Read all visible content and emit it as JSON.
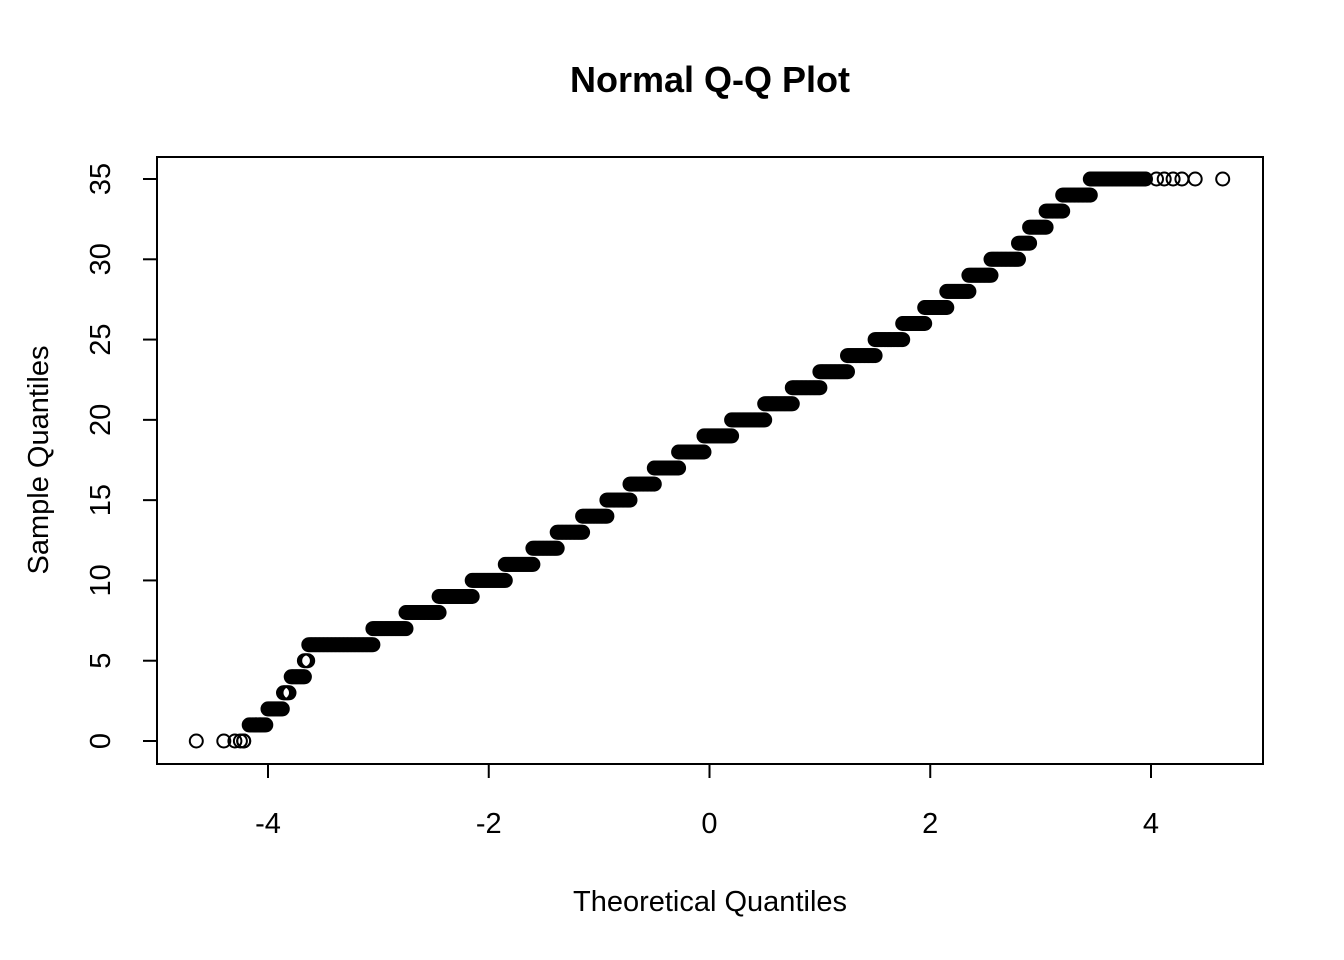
{
  "chart_data": {
    "type": "scatter",
    "title": "Normal Q-Q Plot",
    "xlabel": "Theoretical Quantiles",
    "ylabel": "Sample Quantiles",
    "xlim": [
      -5,
      5
    ],
    "ylim": [
      -1.4,
      36.4
    ],
    "x_ticks": [
      -4,
      -2,
      0,
      2,
      4
    ],
    "x_tick_labels": [
      "-4",
      "-2",
      "0",
      "2",
      "4"
    ],
    "y_ticks": [
      0,
      5,
      10,
      15,
      20,
      25,
      30,
      35
    ],
    "y_tick_labels": [
      "0",
      "5",
      "10",
      "15",
      "20",
      "25",
      "30",
      "35"
    ],
    "grid": false,
    "legend": "none",
    "marker": "open-circle",
    "point_color": "#000000",
    "steps": [
      {
        "y": 0,
        "x_from": -4.22,
        "x_to": -4.22
      },
      {
        "y": 1,
        "x_from": -4.17,
        "x_to": -4.02
      },
      {
        "y": 2,
        "x_from": -4.0,
        "x_to": -3.87
      },
      {
        "y": 3,
        "x_from": -3.86,
        "x_to": -3.81
      },
      {
        "y": 4,
        "x_from": -3.79,
        "x_to": -3.67
      },
      {
        "y": 5,
        "x_from": -3.67,
        "x_to": -3.64
      },
      {
        "y": 6,
        "x_from": -3.63,
        "x_to": -3.05
      },
      {
        "y": 7,
        "x_from": -3.05,
        "x_to": -2.75
      },
      {
        "y": 8,
        "x_from": -2.75,
        "x_to": -2.45
      },
      {
        "y": 9,
        "x_from": -2.45,
        "x_to": -2.15
      },
      {
        "y": 10,
        "x_from": -2.15,
        "x_to": -1.85
      },
      {
        "y": 11,
        "x_from": -1.85,
        "x_to": -1.6
      },
      {
        "y": 12,
        "x_from": -1.6,
        "x_to": -1.38
      },
      {
        "y": 13,
        "x_from": -1.38,
        "x_to": -1.15
      },
      {
        "y": 14,
        "x_from": -1.15,
        "x_to": -0.93
      },
      {
        "y": 15,
        "x_from": -0.93,
        "x_to": -0.72
      },
      {
        "y": 16,
        "x_from": -0.72,
        "x_to": -0.5
      },
      {
        "y": 17,
        "x_from": -0.5,
        "x_to": -0.28
      },
      {
        "y": 18,
        "x_from": -0.28,
        "x_to": -0.05
      },
      {
        "y": 19,
        "x_from": -0.05,
        "x_to": 0.2
      },
      {
        "y": 20,
        "x_from": 0.2,
        "x_to": 0.5
      },
      {
        "y": 21,
        "x_from": 0.5,
        "x_to": 0.75
      },
      {
        "y": 22,
        "x_from": 0.75,
        "x_to": 1.0
      },
      {
        "y": 23,
        "x_from": 1.0,
        "x_to": 1.25
      },
      {
        "y": 24,
        "x_from": 1.25,
        "x_to": 1.5
      },
      {
        "y": 25,
        "x_from": 1.5,
        "x_to": 1.75
      },
      {
        "y": 26,
        "x_from": 1.75,
        "x_to": 1.95
      },
      {
        "y": 27,
        "x_from": 1.95,
        "x_to": 2.15
      },
      {
        "y": 28,
        "x_from": 2.15,
        "x_to": 2.35
      },
      {
        "y": 29,
        "x_from": 2.35,
        "x_to": 2.55
      },
      {
        "y": 30,
        "x_from": 2.55,
        "x_to": 2.8
      },
      {
        "y": 31,
        "x_from": 2.8,
        "x_to": 2.9
      },
      {
        "y": 32,
        "x_from": 2.9,
        "x_to": 3.05
      },
      {
        "y": 33,
        "x_from": 3.05,
        "x_to": 3.2
      },
      {
        "y": 34,
        "x_from": 3.2,
        "x_to": 3.45
      },
      {
        "y": 35,
        "x_from": 3.45,
        "x_to": 3.95
      }
    ],
    "outliers": [
      {
        "x": -4.65,
        "y": 0
      },
      {
        "x": -4.4,
        "y": 0
      },
      {
        "x": -4.3,
        "y": 0
      },
      {
        "x": -4.25,
        "y": 0
      },
      {
        "x": -4.07,
        "y": 1
      },
      {
        "x": -4.11,
        "y": 1
      },
      {
        "x": 4.05,
        "y": 35
      },
      {
        "x": 4.12,
        "y": 35
      },
      {
        "x": 4.2,
        "y": 35
      },
      {
        "x": 4.28,
        "y": 35
      },
      {
        "x": 4.4,
        "y": 35
      },
      {
        "x": 4.65,
        "y": 35
      }
    ]
  }
}
